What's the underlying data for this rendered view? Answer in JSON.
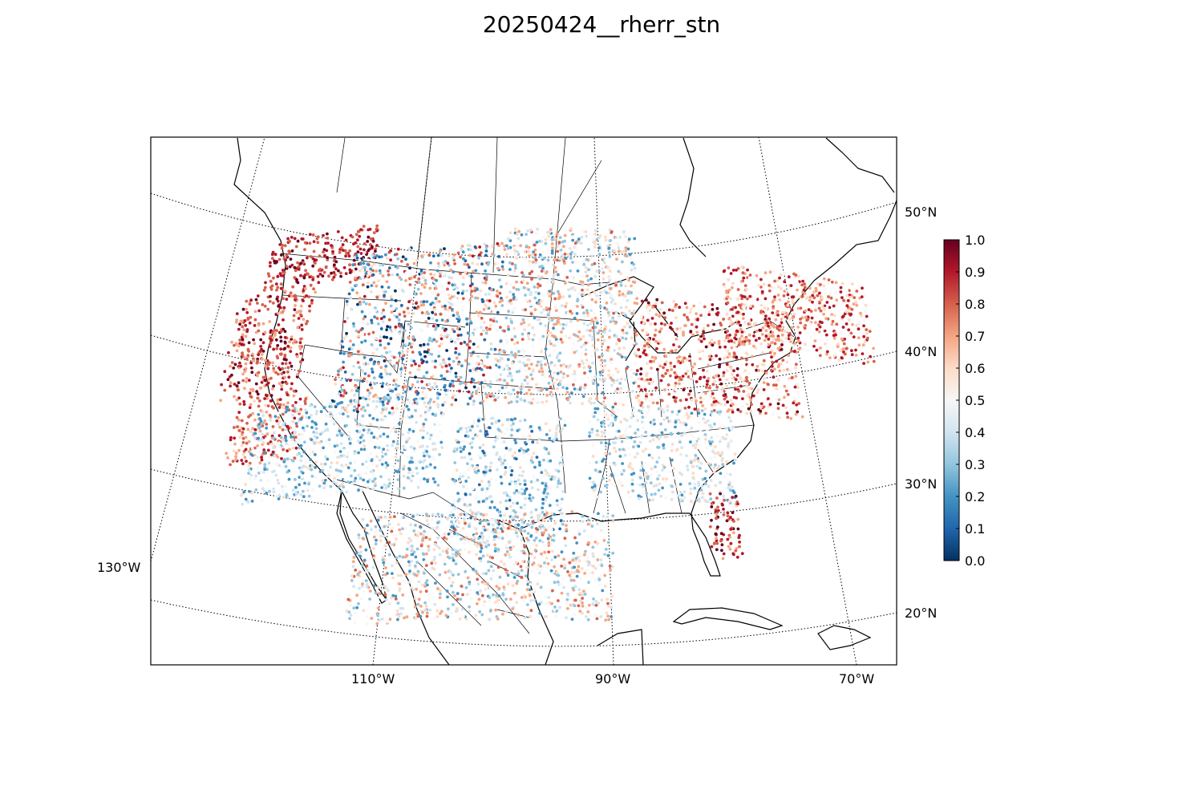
{
  "title": "20250424__rherr_stn",
  "map": {
    "projection": "lambert-conformal",
    "lat_labels": [
      "50°N",
      "40°N",
      "30°N",
      "20°N"
    ],
    "lon_labels": [
      "130°W",
      "110°W",
      "90°W",
      "70°W"
    ],
    "graticule": "dotted",
    "colormap": "RdBu_r"
  },
  "colorbar": {
    "ticks": [
      "1.0",
      "0.9",
      "0.8",
      "0.7",
      "0.6",
      "0.5",
      "0.4",
      "0.3",
      "0.2",
      "0.1",
      "0.0"
    ],
    "colors": [
      "#67001f",
      "#b2182b",
      "#d6604d",
      "#f4a582",
      "#fddbc7",
      "#f7f7f7",
      "#d1e5f0",
      "#92c5de",
      "#4393c3",
      "#2166ac",
      "#053061"
    ]
  },
  "station_regions": [
    {
      "lon": [
        -122,
        -112
      ],
      "lat": [
        46,
        50
      ],
      "value_range": [
        0.75,
        1.0
      ]
    },
    {
      "lon": [
        -124,
        -117
      ],
      "lat": [
        38,
        46
      ],
      "value_range": [
        0.65,
        1.0
      ]
    },
    {
      "lon": [
        -122,
        -116
      ],
      "lat": [
        33,
        38
      ],
      "value_range": [
        0.6,
        0.95
      ]
    },
    {
      "lon": [
        -114,
        -100
      ],
      "lat": [
        36,
        48
      ],
      "value_range": [
        0.0,
        0.9
      ]
    },
    {
      "lon": [
        -120,
        -104
      ],
      "lat": [
        30,
        37
      ],
      "value_range": [
        0.15,
        0.6
      ]
    },
    {
      "lon": [
        -103,
        -94
      ],
      "lat": [
        26,
        35
      ],
      "value_range": [
        0.1,
        0.6
      ]
    },
    {
      "lon": [
        -100,
        -88
      ],
      "lat": [
        36,
        49
      ],
      "value_range": [
        0.2,
        0.8
      ]
    },
    {
      "lon": [
        -88,
        -74
      ],
      "lat": [
        36,
        44
      ],
      "value_range": [
        0.5,
        1.0
      ]
    },
    {
      "lon": [
        -92,
        -80
      ],
      "lat": [
        29,
        36
      ],
      "value_range": [
        0.2,
        0.65
      ]
    },
    {
      "lon": [
        -82.5,
        -80
      ],
      "lat": [
        25,
        30
      ],
      "value_range": [
        0.7,
        1.0
      ]
    },
    {
      "lon": [
        -80,
        -67
      ],
      "lat": [
        41,
        47
      ],
      "value_range": [
        0.45,
        0.95
      ]
    },
    {
      "lon": [
        -110,
        -90
      ],
      "lat": [
        20,
        28
      ],
      "value_range": [
        0.2,
        0.8
      ]
    }
  ]
}
